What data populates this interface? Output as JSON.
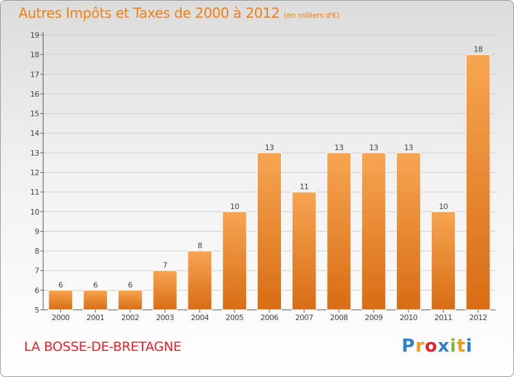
{
  "title": "Autres Impôts et Taxes de 2000 à 2012",
  "unit": "(en milliers d'€)",
  "commune": "LA BOSSE-DE-BRETAGNE",
  "logo": {
    "letters": [
      "P",
      "r",
      "o",
      "x",
      "i",
      "t",
      "i"
    ],
    "colors": [
      "#2e7fc8",
      "#f29a1c",
      "#e8212b",
      "#2e7fc8",
      "#7fb53a",
      "#f29a1c",
      "#2e7fc8"
    ]
  },
  "colors": {
    "title": "#f07f14",
    "commune": "#e8212b",
    "bar_top": "#f7a552",
    "bar_bottom": "#d86d14",
    "axis": "#555555",
    "grid": "#cfcfcf"
  },
  "chart_data": {
    "type": "bar",
    "title": "Autres Impôts et Taxes de 2000 à 2012",
    "subtitle": "(en milliers d'€)",
    "categories": [
      "2000",
      "2001",
      "2002",
      "2003",
      "2004",
      "2005",
      "2006",
      "2007",
      "2008",
      "2009",
      "2010",
      "2011",
      "2012"
    ],
    "values": [
      6,
      6,
      6,
      7,
      8,
      10,
      13,
      11,
      13,
      13,
      13,
      10,
      18
    ],
    "ylim": [
      5,
      19
    ],
    "yticks": [
      5,
      6,
      7,
      8,
      9,
      10,
      11,
      12,
      13,
      14,
      15,
      16,
      17,
      18,
      19
    ],
    "xlabel": "",
    "ylabel": "",
    "grid": true
  }
}
